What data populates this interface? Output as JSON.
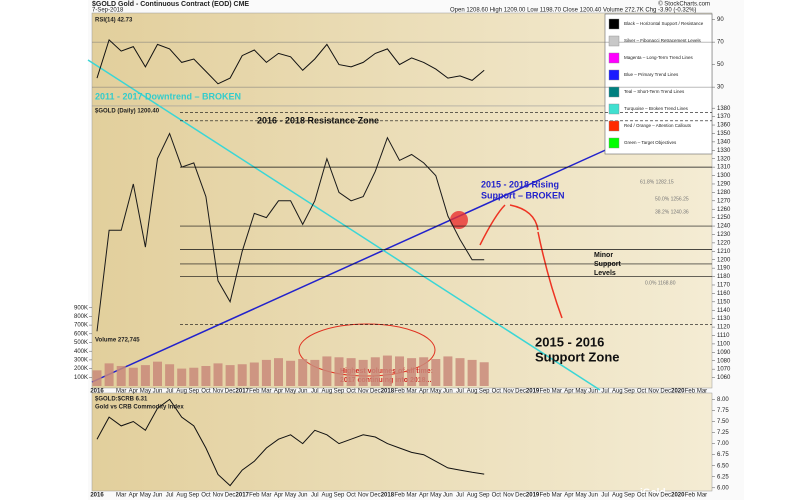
{
  "header": {
    "symbol_line": "$GOLD Gold - Continuous Contract (EOD) CME",
    "date": "7-Sep-2018",
    "quote": "Open 1208.60  High 1209.00  Low 1198.70  Close 1200.40  Volume 272.7K  Chg -3.90 (-0.32%)",
    "source": "© StockCharts.com",
    "watermark": "iGold"
  },
  "legend": {
    "items": [
      {
        "label": "Black – Horizontal Support / Resistance",
        "color": "#000000"
      },
      {
        "label": "Silver – Fibonacci Retracement Levels",
        "color": "#c8c8c8"
      },
      {
        "label": "Magenta – Long-Term Trend Lines",
        "color": "#ff00ff"
      },
      {
        "label": "Blue – Primary Trend Lines",
        "color": "#1a1aff"
      },
      {
        "label": "Teal – Short-Term Trend Lines",
        "color": "#008080"
      },
      {
        "label": "Turquoise – Broken Trend Lines",
        "color": "#40e0d0"
      },
      {
        "label": "Red / Orange – Attention Callouts",
        "color": "#ff2a00"
      },
      {
        "label": "Green – Target Objectives",
        "color": "#00ff00"
      }
    ]
  },
  "chart_data": [
    {
      "type": "line",
      "title": "RSI(14) 42.73",
      "color": "#111111",
      "values": [
        38,
        72,
        62,
        66,
        48,
        68,
        64,
        52,
        55,
        44,
        33,
        38,
        58,
        63,
        52,
        60,
        57,
        45,
        55,
        68,
        50,
        48,
        52,
        60,
        64,
        50,
        56,
        52,
        46,
        38,
        40,
        36,
        45
      ],
      "ylim": [
        15,
        95
      ],
      "yticks": [
        30,
        50,
        70,
        90
      ]
    },
    {
      "type": "line",
      "title": "$GOLD (Daily) 1200.40",
      "color": "#1a1a1a",
      "categories": [
        "2016",
        null,
        "Mar",
        "Apr",
        "May",
        "Jun",
        "Jul",
        "Aug",
        "Sep",
        "Oct",
        "Nov",
        "Dec",
        "2017",
        "Feb",
        "Mar",
        "Apr",
        "May",
        "Jun",
        "Jul",
        "Aug",
        "Sep",
        "Oct",
        "Nov",
        "Dec",
        "2018",
        "Feb",
        "Mar",
        "Apr",
        "May",
        "Jun",
        "Jul",
        "Aug",
        "Sep",
        "Oct",
        "Nov",
        "Dec",
        "2019",
        "Feb",
        "Mar",
        "Apr",
        "May",
        "Jun",
        "Jul",
        "Aug",
        "Sep",
        "Oct",
        "Nov",
        "Dec",
        "2020",
        "Feb",
        "Mar"
      ],
      "values": [
        1115,
        1235,
        1235,
        1290,
        1215,
        1320,
        1350,
        1310,
        1315,
        1275,
        1175,
        1150,
        1210,
        1255,
        1250,
        1270,
        1270,
        1242,
        1270,
        1320,
        1280,
        1270,
        1275,
        1305,
        1345,
        1318,
        1325,
        1315,
        1300,
        1252,
        1224,
        1200,
        1200,
        null,
        null,
        null,
        null,
        null,
        null,
        null,
        null,
        null,
        null,
        null,
        null,
        null,
        null,
        null,
        null,
        null,
        null
      ],
      "ylim": [
        1050,
        1385
      ],
      "yticks": [
        1060,
        1070,
        1080,
        1090,
        1100,
        1110,
        1120,
        1130,
        1140,
        1150,
        1160,
        1170,
        1180,
        1190,
        1200,
        1210,
        1220,
        1230,
        1240,
        1250,
        1260,
        1270,
        1280,
        1290,
        1300,
        1310,
        1320,
        1330,
        1340,
        1350,
        1360,
        1370,
        1380
      ],
      "levels": [
        1375,
        1365,
        1310,
        1240,
        1212,
        1195,
        1180,
        1123
      ],
      "annotations": [
        {
          "lines": [
            "2011 - 2017 Downtrend – BROKEN"
          ]
        },
        {
          "lines": [
            "2016 - 2018 Resistance Zone"
          ]
        },
        {
          "lines": [
            "2015 - 2018 Rising",
            "Support – BROKEN"
          ]
        },
        {
          "lines": [
            "Minor",
            "Support",
            "Levels"
          ]
        },
        {
          "lines": [
            "2015 - 2016",
            "Support Zone"
          ]
        },
        {
          "lines": [
            "Highest volumes of all time:",
            "2017 continuing into 2018..."
          ]
        },
        {
          "lines": [
            "61.8% 1282.15"
          ]
        },
        {
          "lines": [
            "50.0% 1256.25"
          ]
        },
        {
          "lines": [
            "38.2% 1240.36"
          ]
        },
        {
          "lines": [
            "0.0% 1168.80"
          ]
        }
      ]
    },
    {
      "type": "bar",
      "title": "Volume 272,745",
      "color": "#c98a7a",
      "values": [
        180000,
        260000,
        230000,
        210000,
        240000,
        280000,
        250000,
        200000,
        210000,
        230000,
        260000,
        240000,
        250000,
        270000,
        300000,
        320000,
        290000,
        310000,
        300000,
        340000,
        330000,
        320000,
        300000,
        330000,
        350000,
        340000,
        320000,
        330000,
        310000,
        340000,
        320000,
        300000,
        272745
      ],
      "ylim": [
        0,
        1000000
      ],
      "yticks": [
        {
          "value": 100000,
          "label": "100K"
        },
        {
          "value": 200000,
          "label": "200K"
        },
        {
          "value": 300000,
          "label": "300K"
        },
        {
          "value": 400000,
          "label": "400K"
        },
        {
          "value": 500000,
          "label": "500K"
        },
        {
          "value": 600000,
          "label": "600K"
        },
        {
          "value": 700000,
          "label": "700K"
        },
        {
          "value": 800000,
          "label": "800K"
        },
        {
          "value": 900000,
          "label": "900K"
        }
      ]
    },
    {
      "type": "line",
      "title": "$GOLD:$CRB 6.31",
      "subtitle": "Gold vs CRB Commodity Index",
      "color": "#111111",
      "categories": [
        "2016",
        null,
        "Mar",
        "Apr",
        "May",
        "Jun",
        "Jul",
        "Aug",
        "Sep",
        "Oct",
        "Nov",
        "Dec",
        "2017",
        "Feb",
        "Mar",
        "Apr",
        "May",
        "Jun",
        "Jul",
        "Aug",
        "Sep",
        "Oct",
        "Nov",
        "Dec",
        "2018",
        "Feb",
        "Mar",
        "Apr",
        "May",
        "Jun",
        "Jul",
        "Aug",
        "Sep",
        "Oct",
        "Nov",
        "Dec",
        "2019",
        "Feb",
        "Mar",
        "Apr",
        "May",
        "Jun",
        "Jul",
        "Aug",
        "Sep",
        "Oct",
        "Nov",
        "Dec",
        "2020",
        "Feb",
        "Mar"
      ],
      "values": [
        7.1,
        7.6,
        7.4,
        7.5,
        7.3,
        7.8,
        8.0,
        7.6,
        7.4,
        6.9,
        6.3,
        6.05,
        6.4,
        6.6,
        6.9,
        7.1,
        7.2,
        7.0,
        7.3,
        7.2,
        7.0,
        7.1,
        7.2,
        7.15,
        7.0,
        6.9,
        6.8,
        6.75,
        6.6,
        6.45,
        6.4,
        6.35,
        6.31,
        null,
        null,
        null,
        null,
        null,
        null,
        null,
        null,
        null,
        null,
        null,
        null,
        null,
        null,
        null,
        null,
        null,
        null
      ],
      "ylim": [
        5.95,
        8.1
      ],
      "yticks": [
        {
          "value": 6,
          "label": "6.00"
        },
        6.25,
        {
          "value": 6.5,
          "label": "6.50"
        },
        6.75,
        {
          "value": 7,
          "label": "7.00"
        },
        7.25,
        {
          "value": 7.5,
          "label": "7.50"
        },
        7.75,
        {
          "value": 8,
          "label": "8.00"
        }
      ]
    }
  ]
}
